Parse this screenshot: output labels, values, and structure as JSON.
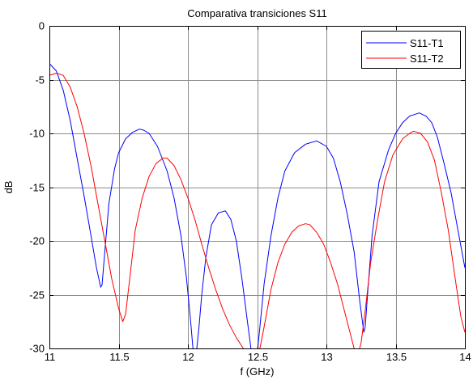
{
  "chart_data": {
    "type": "line",
    "title": "Comparativa transiciones S11",
    "xlabel": "f (GHz)",
    "ylabel": "dB",
    "xlim": [
      11,
      14
    ],
    "ylim": [
      -30,
      0
    ],
    "xticks": [
      11,
      11.5,
      12,
      12.5,
      13,
      13.5,
      14
    ],
    "xtick_labels": [
      "11",
      "11.5",
      "12",
      "12.5",
      "13",
      "13.5",
      "14"
    ],
    "yticks": [
      -30,
      -25,
      -20,
      -15,
      -10,
      -5,
      0
    ],
    "ytick_labels": [
      "-30",
      "-25",
      "-20",
      "-15",
      "-10",
      "-5",
      "0"
    ],
    "grid": true,
    "legend": "top-right",
    "series": [
      {
        "name": "S11-T1",
        "color": "#0000ff",
        "x": [
          11.0,
          11.05,
          11.1,
          11.15,
          11.2,
          11.25,
          11.3,
          11.34,
          11.37,
          11.38,
          11.4,
          11.43,
          11.47,
          11.5,
          11.55,
          11.6,
          11.65,
          11.68,
          11.72,
          11.78,
          11.85,
          11.9,
          11.95,
          11.99,
          12.02,
          12.04,
          12.06,
          12.08,
          12.1,
          12.13,
          12.17,
          12.22,
          12.27,
          12.31,
          12.35,
          12.39,
          12.43,
          12.46,
          12.48,
          12.5,
          12.52,
          12.55,
          12.6,
          12.65,
          12.7,
          12.77,
          12.85,
          12.93,
          13.0,
          13.05,
          13.1,
          13.15,
          13.2,
          13.24,
          13.27,
          13.28,
          13.3,
          13.33,
          13.38,
          13.45,
          13.5,
          13.55,
          13.6,
          13.67,
          13.72,
          13.76,
          13.8,
          13.85,
          13.9,
          13.95,
          14.0
        ],
        "y": [
          -3.5,
          -4.2,
          -6.0,
          -8.8,
          -12.3,
          -15.8,
          -19.5,
          -22.5,
          -24.3,
          -24.1,
          -21.0,
          -16.5,
          -13.3,
          -11.8,
          -10.5,
          -9.9,
          -9.6,
          -9.7,
          -10.0,
          -11.2,
          -13.5,
          -16.0,
          -19.5,
          -23.5,
          -27.5,
          -30.5,
          -30.5,
          -28.0,
          -25.0,
          -21.5,
          -18.5,
          -17.4,
          -17.2,
          -18.0,
          -20.0,
          -23.5,
          -27.5,
          -30.5,
          -30.5,
          -30.5,
          -28.0,
          -24.0,
          -19.5,
          -16.0,
          -13.5,
          -11.8,
          -11.0,
          -10.7,
          -11.2,
          -12.3,
          -14.5,
          -17.5,
          -21.0,
          -25.5,
          -28.5,
          -28.0,
          -24.5,
          -19.5,
          -14.5,
          -11.5,
          -10.0,
          -9.0,
          -8.4,
          -8.1,
          -8.4,
          -9.0,
          -10.3,
          -12.8,
          -15.5,
          -19.0,
          -22.5
        ]
      },
      {
        "name": "S11-T2",
        "color": "#ff0000",
        "x": [
          11.0,
          11.05,
          11.1,
          11.15,
          11.2,
          11.25,
          11.3,
          11.35,
          11.4,
          11.45,
          11.5,
          11.53,
          11.55,
          11.58,
          11.62,
          11.67,
          11.72,
          11.77,
          11.82,
          11.85,
          11.9,
          11.95,
          12.0,
          12.05,
          12.1,
          12.15,
          12.2,
          12.25,
          12.3,
          12.35,
          12.4,
          12.45,
          12.5,
          12.52,
          12.55,
          12.6,
          12.65,
          12.7,
          12.75,
          12.8,
          12.85,
          12.88,
          12.93,
          12.98,
          13.03,
          13.08,
          13.13,
          13.18,
          13.21,
          13.23,
          13.25,
          13.28,
          13.32,
          13.37,
          13.42,
          13.48,
          13.55,
          13.6,
          13.63,
          13.68,
          13.73,
          13.78,
          13.83,
          13.88,
          13.93,
          13.97,
          14.0
        ],
        "y": [
          -4.6,
          -4.4,
          -4.6,
          -5.7,
          -7.5,
          -10.0,
          -13.0,
          -16.5,
          -20.0,
          -23.5,
          -26.3,
          -27.5,
          -26.8,
          -23.5,
          -19.0,
          -16.0,
          -14.0,
          -12.8,
          -12.3,
          -12.3,
          -13.0,
          -14.3,
          -16.0,
          -18.0,
          -20.3,
          -22.5,
          -24.5,
          -26.3,
          -27.8,
          -29.0,
          -30.0,
          -30.5,
          -30.5,
          -30.0,
          -28.0,
          -24.5,
          -22.0,
          -20.3,
          -19.2,
          -18.6,
          -18.4,
          -18.5,
          -19.2,
          -20.3,
          -22.0,
          -24.0,
          -26.5,
          -29.0,
          -30.5,
          -30.5,
          -29.5,
          -26.5,
          -22.0,
          -18.0,
          -14.5,
          -12.0,
          -10.5,
          -10.0,
          -9.8,
          -10.0,
          -10.8,
          -12.5,
          -15.5,
          -19.0,
          -23.5,
          -27.0,
          -28.5
        ]
      }
    ]
  }
}
